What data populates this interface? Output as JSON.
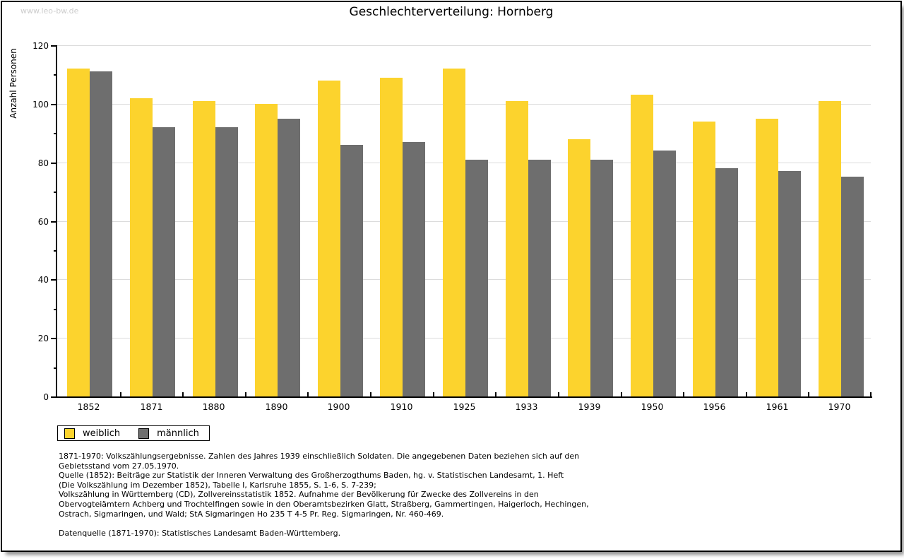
{
  "watermark": "www.leo-bw.de",
  "title": "Geschlechterverteilung: Hornberg",
  "chart_data": {
    "type": "bar",
    "title": "Geschlechterverteilung: Hornberg",
    "categories": [
      "1852",
      "1871",
      "1880",
      "1890",
      "1900",
      "1910",
      "1925",
      "1933",
      "1939",
      "1950",
      "1956",
      "1961",
      "1970"
    ],
    "series": [
      {
        "name": "weiblich",
        "color": "#FCD32D",
        "values": [
          112,
          102,
          101,
          100,
          108,
          109,
          112,
          101,
          88,
          103,
          94,
          95,
          101
        ]
      },
      {
        "name": "männlich",
        "color": "#6E6E6E",
        "values": [
          111,
          92,
          92,
          95,
          86,
          87,
          81,
          81,
          81,
          84,
          78,
          77,
          75
        ]
      }
    ],
    "xlabel": "",
    "ylabel": "Anzahl Personen",
    "ylim": [
      0,
      120
    ],
    "ytick_step": 20,
    "ytick_minor_step": 10,
    "grid": true,
    "gridline_color": "#dcdcdc",
    "legend_position": "bottom-left"
  },
  "footer": {
    "lines": [
      "1871-1970: Volkszählungsergebnisse. Zahlen des Jahres 1939 einschließlich Soldaten. Die angegebenen Daten beziehen sich auf den",
      "Gebietsstand vom 27.05.1970.",
      "Quelle (1852): Beiträge zur Statistik der Inneren Verwaltung des Großherzogthums Baden, hg. v. Statistischen Landesamt, 1. Heft",
      "(Die Volkszählung im Dezember 1852), Tabelle I, Karlsruhe 1855, S. 1-6, S. 7-239;",
      "Volkszählung in Württemberg (CD), Zollvereinsstatistik 1852. Aufnahme der Bevölkerung für Zwecke des Zollvereins in den",
      "Obervogteiämtern Achberg und Trochtelfingen sowie in den Oberamtsbezirken Glatt, Straßberg, Gammertingen, Haigerloch, Hechingen,",
      "Ostrach, Sigmaringen, und Wald; StA Sigmaringen Ho 235 T 4-5 Pr. Reg. Sigmaringen, Nr. 460-469."
    ],
    "datenquelle": "Datenquelle (1871-1970): Statistisches Landesamt Baden-Württemberg."
  }
}
